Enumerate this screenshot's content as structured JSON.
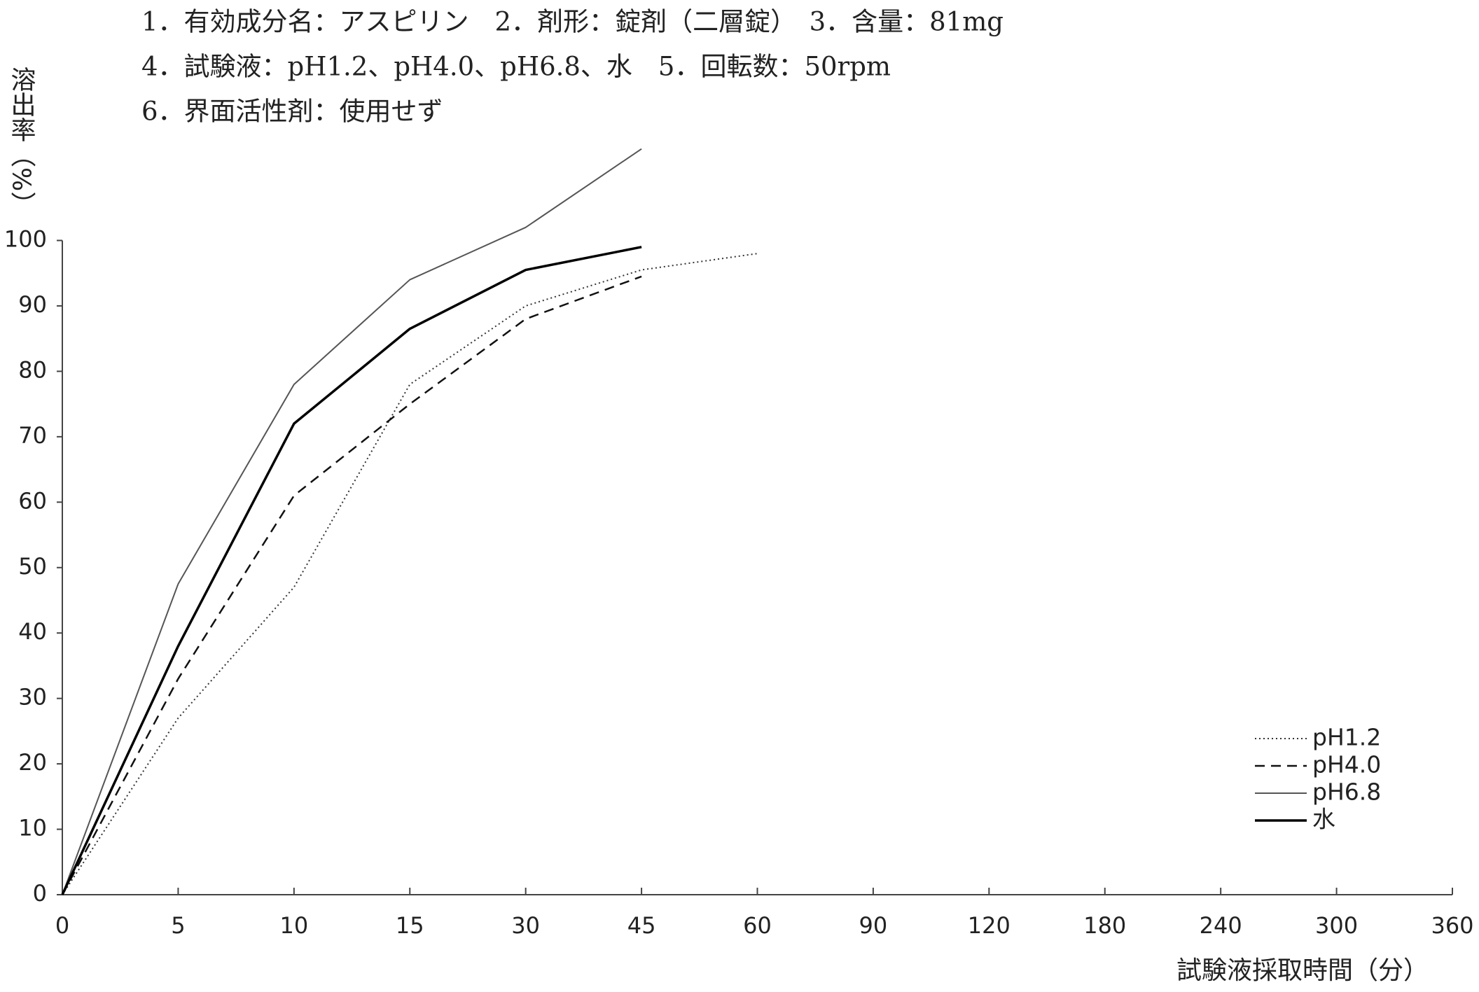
{
  "chart_data": {
    "type": "line",
    "title_lines": [
      "1．有効成分名：アスピリン　2．剤形：錠剤（二層錠）　3．含量：81mg",
      "4．試験液：pH1.2、pH4.0、pH6.8、水　5．回転数：50rpm",
      "6．界面活性剤：使用せず"
    ],
    "y_label": "溶出率（%）",
    "x_label": "試験液採取時間（分）",
    "categories": [
      "0",
      "5",
      "10",
      "15",
      "30",
      "45",
      "60",
      "90",
      "120",
      "180",
      "240",
      "300",
      "360"
    ],
    "series": [
      {
        "name": "pH1.2",
        "color": "#333333",
        "style": "dotted",
        "width": 2,
        "values": [
          0,
          27,
          47,
          78,
          90,
          95.5,
          98,
          null,
          null,
          null,
          null,
          null,
          null
        ]
      },
      {
        "name": "pH4.0",
        "color": "#111111",
        "style": "dashed",
        "width": 2.5,
        "values": [
          0,
          33,
          61,
          75,
          88,
          94.5,
          null,
          null,
          null,
          null,
          null,
          null,
          null
        ]
      },
      {
        "name": "pH6.8",
        "color": "#555555",
        "style": "solid",
        "width": 2,
        "values": [
          0,
          47.5,
          78,
          94,
          102,
          114,
          null,
          null,
          null,
          null,
          null,
          null,
          null
        ]
      },
      {
        "name": "水",
        "color": "#000000",
        "style": "solid",
        "width": 3.5,
        "values": [
          0,
          38,
          72,
          86.5,
          95.5,
          99,
          null,
          null,
          null,
          null,
          null,
          null,
          null
        ]
      }
    ],
    "ylim": [
      0,
      100
    ],
    "yticks": [
      0,
      10,
      20,
      30,
      40,
      50,
      60,
      70,
      80,
      90,
      100
    ],
    "legend": "lower-right"
  }
}
